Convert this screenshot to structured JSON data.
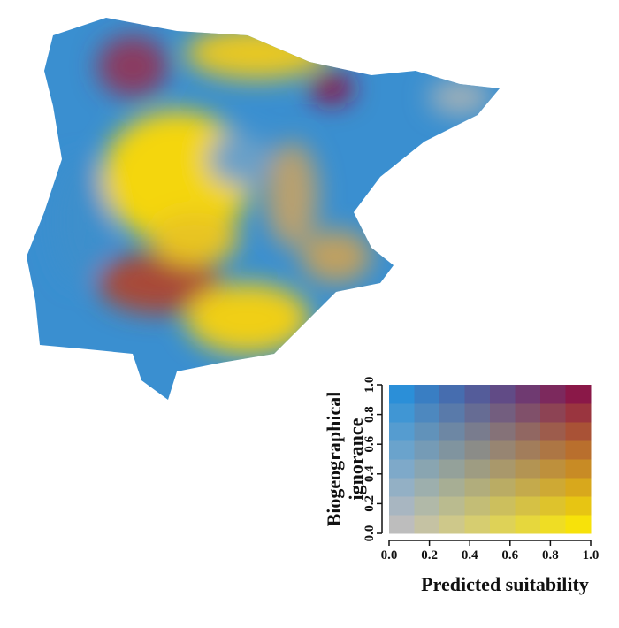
{
  "legend": {
    "x_label": "Predicted suitability",
    "y_label": [
      "Biogeographical",
      "ignorance"
    ],
    "xlim": [
      0,
      1
    ],
    "ylim": [
      0,
      1
    ],
    "xticks": [
      {
        "value": 0,
        "label": "0.0"
      },
      0.2,
      0.4,
      0.6,
      0.8,
      {
        "value": 1,
        "label": "1.0"
      }
    ],
    "yticks": [
      {
        "value": 0,
        "label": "0.0"
      },
      0.2,
      0.4,
      0.6,
      0.8,
      {
        "value": 1,
        "label": "1.0"
      }
    ],
    "corner_colors": {
      "low_low": "#bdbdbd",
      "high_low": "#f7e20a",
      "low_high": "#2b8fd8",
      "high_high": "#8a1848"
    }
  }
}
